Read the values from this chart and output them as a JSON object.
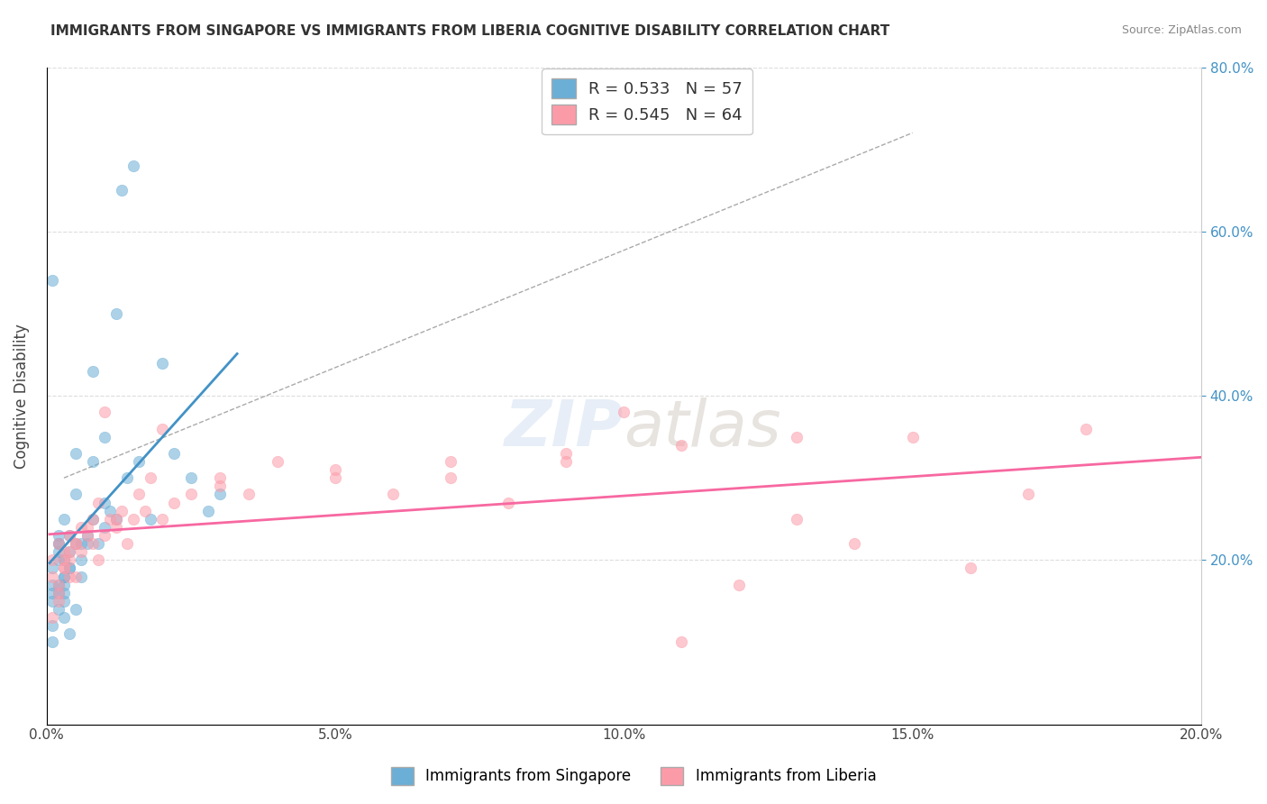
{
  "title": "IMMIGRANTS FROM SINGAPORE VS IMMIGRANTS FROM LIBERIA COGNITIVE DISABILITY CORRELATION CHART",
  "source": "Source: ZipAtlas.com",
  "xlabel_bottom": "",
  "ylabel": "Cognitive Disability",
  "legend_label1": "Immigrants from Singapore",
  "legend_label2": "Immigrants from Liberia",
  "r1": 0.533,
  "n1": 57,
  "r2": 0.545,
  "n2": 64,
  "color1": "#6baed6",
  "color2": "#fc9ba8",
  "trendline1_color": "#4292c6",
  "trendline2_color": "#f768a1",
  "xlim": [
    0.0,
    0.2
  ],
  "ylim": [
    0.0,
    0.8
  ],
  "xtick_labels": [
    "0.0%",
    "5.0%",
    "10.0%",
    "15.0%",
    "20.0%"
  ],
  "xtick_values": [
    0.0,
    0.05,
    0.1,
    0.15,
    0.2
  ],
  "ytick_labels_left": [
    "",
    "",
    "",
    "",
    ""
  ],
  "ytick_labels_right": [
    "20.0%",
    "40.0%",
    "60.0%",
    "80.0%"
  ],
  "ytick_values": [
    0.2,
    0.4,
    0.6,
    0.8
  ],
  "watermark": "ZIPatlas",
  "background_color": "#ffffff",
  "scatter1_x": [
    0.001,
    0.001,
    0.002,
    0.002,
    0.003,
    0.003,
    0.003,
    0.004,
    0.004,
    0.004,
    0.005,
    0.005,
    0.005,
    0.006,
    0.006,
    0.007,
    0.007,
    0.008,
    0.008,
    0.009,
    0.01,
    0.01,
    0.011,
    0.012,
    0.012,
    0.013,
    0.014,
    0.015,
    0.016,
    0.018,
    0.02,
    0.022,
    0.025,
    0.028,
    0.03,
    0.002,
    0.003,
    0.003,
    0.004,
    0.005,
    0.001,
    0.002,
    0.003,
    0.001,
    0.002,
    0.001,
    0.003,
    0.004,
    0.002,
    0.002,
    0.001,
    0.002,
    0.003,
    0.001,
    0.006,
    0.008,
    0.01
  ],
  "scatter1_y": [
    0.17,
    0.54,
    0.22,
    0.16,
    0.25,
    0.2,
    0.18,
    0.23,
    0.19,
    0.21,
    0.22,
    0.28,
    0.33,
    0.2,
    0.18,
    0.23,
    0.22,
    0.32,
    0.43,
    0.22,
    0.24,
    0.35,
    0.26,
    0.25,
    0.5,
    0.65,
    0.3,
    0.68,
    0.32,
    0.25,
    0.44,
    0.33,
    0.3,
    0.26,
    0.28,
    0.2,
    0.13,
    0.15,
    0.11,
    0.14,
    0.15,
    0.17,
    0.18,
    0.1,
    0.22,
    0.16,
    0.17,
    0.19,
    0.21,
    0.23,
    0.12,
    0.14,
    0.16,
    0.19,
    0.22,
    0.25,
    0.27
  ],
  "scatter2_x": [
    0.001,
    0.001,
    0.002,
    0.002,
    0.003,
    0.003,
    0.004,
    0.004,
    0.005,
    0.005,
    0.006,
    0.007,
    0.008,
    0.009,
    0.01,
    0.011,
    0.012,
    0.013,
    0.014,
    0.015,
    0.016,
    0.017,
    0.018,
    0.02,
    0.022,
    0.025,
    0.03,
    0.035,
    0.04,
    0.05,
    0.06,
    0.07,
    0.08,
    0.09,
    0.1,
    0.11,
    0.12,
    0.13,
    0.14,
    0.15,
    0.16,
    0.17,
    0.18,
    0.003,
    0.002,
    0.004,
    0.005,
    0.001,
    0.002,
    0.003,
    0.004,
    0.006,
    0.007,
    0.008,
    0.009,
    0.01,
    0.012,
    0.02,
    0.03,
    0.05,
    0.07,
    0.09,
    0.11,
    0.13
  ],
  "scatter2_y": [
    0.18,
    0.2,
    0.22,
    0.17,
    0.19,
    0.21,
    0.2,
    0.23,
    0.22,
    0.18,
    0.21,
    0.24,
    0.22,
    0.2,
    0.23,
    0.25,
    0.24,
    0.26,
    0.22,
    0.25,
    0.28,
    0.26,
    0.3,
    0.25,
    0.27,
    0.28,
    0.3,
    0.28,
    0.32,
    0.3,
    0.28,
    0.3,
    0.27,
    0.32,
    0.38,
    0.1,
    0.17,
    0.25,
    0.22,
    0.35,
    0.19,
    0.28,
    0.36,
    0.2,
    0.15,
    0.18,
    0.22,
    0.13,
    0.16,
    0.19,
    0.21,
    0.24,
    0.23,
    0.25,
    0.27,
    0.38,
    0.25,
    0.36,
    0.29,
    0.31,
    0.32,
    0.33,
    0.34,
    0.35
  ]
}
